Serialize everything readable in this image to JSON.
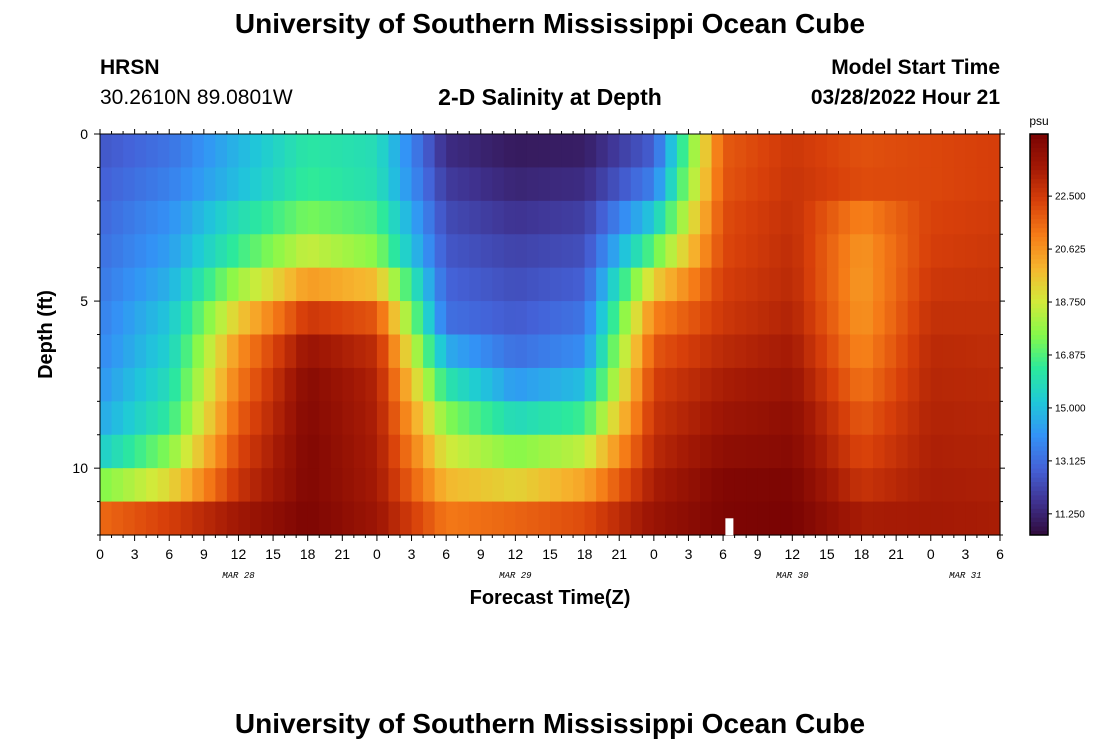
{
  "header": {
    "title": "University of Southern Mississippi Ocean Cube",
    "station": "HRSN",
    "coordinates": "30.2610N  89.0801W",
    "plot_title": "2-D Salinity at Depth",
    "model_start_label": "Model Start Time",
    "model_start_value": "03/28/2022 Hour 21"
  },
  "footer": {
    "title": "University of Southern Mississippi Ocean Cube"
  },
  "chart_data": {
    "type": "heatmap",
    "title": "2-D Salinity at Depth",
    "xlabel": "Forecast Time(Z)",
    "ylabel": "Depth (ft)",
    "x_tick_labels": [
      "0",
      "3",
      "6",
      "9",
      "12",
      "15",
      "18",
      "21",
      "0",
      "3",
      "6",
      "9",
      "12",
      "15",
      "18",
      "21",
      "0",
      "3",
      "6",
      "9",
      "12",
      "15",
      "18",
      "21",
      "0",
      "3",
      "6"
    ],
    "x_range_hours": [
      0,
      78
    ],
    "month_labels": [
      {
        "text": "MAR 28",
        "hour": 12
      },
      {
        "text": "MAR 29",
        "hour": 36
      },
      {
        "text": "MAR 30",
        "hour": 60
      },
      {
        "text": "MAR 31",
        "hour": 75
      }
    ],
    "y_ticks": [
      {
        "value": 0,
        "label": "0"
      },
      {
        "value": 5,
        "label": "5"
      },
      {
        "value": 10,
        "label": "10"
      }
    ],
    "y_range_ft": [
      0,
      12
    ],
    "depth_levels_ft": [
      0.5,
      1.5,
      2.5,
      3.5,
      4.5,
      5.5,
      6.5,
      7.5,
      8.5,
      9.5,
      10.5,
      11.5
    ],
    "colorbar": {
      "unit": "psu",
      "range": [
        10.5,
        24.7
      ],
      "tick_values": [
        11.25,
        13.125,
        15.0,
        16.875,
        18.75,
        20.625,
        22.5
      ],
      "tick_labels": [
        "11.250",
        "13.125",
        "15.000",
        "16.875",
        "18.750",
        "20.625",
        "22.500"
      ],
      "colors": [
        "#300a3a",
        "#3f3290",
        "#4462d8",
        "#3393f6",
        "#1fc9d8",
        "#2ce99c",
        "#86f94a",
        "#d2ea3a",
        "#f6b52e",
        "#f57b17",
        "#d8400a",
        "#a31905",
        "#7a0403"
      ]
    },
    "salinity_by_hour": {
      "hours": [
        0,
        6,
        12,
        18,
        24,
        30,
        36,
        42,
        48,
        54,
        60,
        66,
        72,
        78
      ],
      "note": "rows = depth levels top to bottom (psu)",
      "rows": [
        [
          12.6,
          13.3,
          14.8,
          16.3,
          15.9,
          11.5,
          11.0,
          11.1,
          12.8,
          21.8,
          22.6,
          22.0,
          22.2,
          22.4
        ],
        [
          12.8,
          13.6,
          15.0,
          16.5,
          16.0,
          11.9,
          11.3,
          11.5,
          13.6,
          21.9,
          22.7,
          22.1,
          22.2,
          22.4
        ],
        [
          13.0,
          14.0,
          15.9,
          17.4,
          16.8,
          12.3,
          11.7,
          12.0,
          15.3,
          22.1,
          22.8,
          21.0,
          22.3,
          22.5
        ],
        [
          13.2,
          14.3,
          16.6,
          18.6,
          17.6,
          12.6,
          12.1,
          12.4,
          17.1,
          22.2,
          22.9,
          20.6,
          22.4,
          22.6
        ],
        [
          13.4,
          14.7,
          18.0,
          20.5,
          19.8,
          12.9,
          12.4,
          12.8,
          19.4,
          22.4,
          23.0,
          20.5,
          22.6,
          22.7
        ],
        [
          13.6,
          15.2,
          19.5,
          22.6,
          21.9,
          13.2,
          12.7,
          13.3,
          21.0,
          22.6,
          23.2,
          20.6,
          22.8,
          22.8
        ],
        [
          13.8,
          15.5,
          20.7,
          23.8,
          22.9,
          14.6,
          13.2,
          13.9,
          21.9,
          23.0,
          23.5,
          20.9,
          23.0,
          22.9
        ],
        [
          14.1,
          15.9,
          21.2,
          24.3,
          23.2,
          16.2,
          14.2,
          15.0,
          22.4,
          23.4,
          23.8,
          21.3,
          23.1,
          23.0
        ],
        [
          14.5,
          16.4,
          21.7,
          24.4,
          23.3,
          17.6,
          15.8,
          16.6,
          22.7,
          23.7,
          24.1,
          21.8,
          23.2,
          23.1
        ],
        [
          15.4,
          17.6,
          22.2,
          24.5,
          23.4,
          18.8,
          17.6,
          18.5,
          23.0,
          24.1,
          24.3,
          22.2,
          23.3,
          23.2
        ],
        [
          17.5,
          19.2,
          22.7,
          24.5,
          23.5,
          19.9,
          19.3,
          20.3,
          23.4,
          24.5,
          24.6,
          22.7,
          23.4,
          23.3
        ],
        [
          21.5,
          22.4,
          23.6,
          24.6,
          23.7,
          21.2,
          21.6,
          22.1,
          23.8,
          24.6,
          24.7,
          23.4,
          23.5,
          23.4
        ]
      ]
    }
  }
}
